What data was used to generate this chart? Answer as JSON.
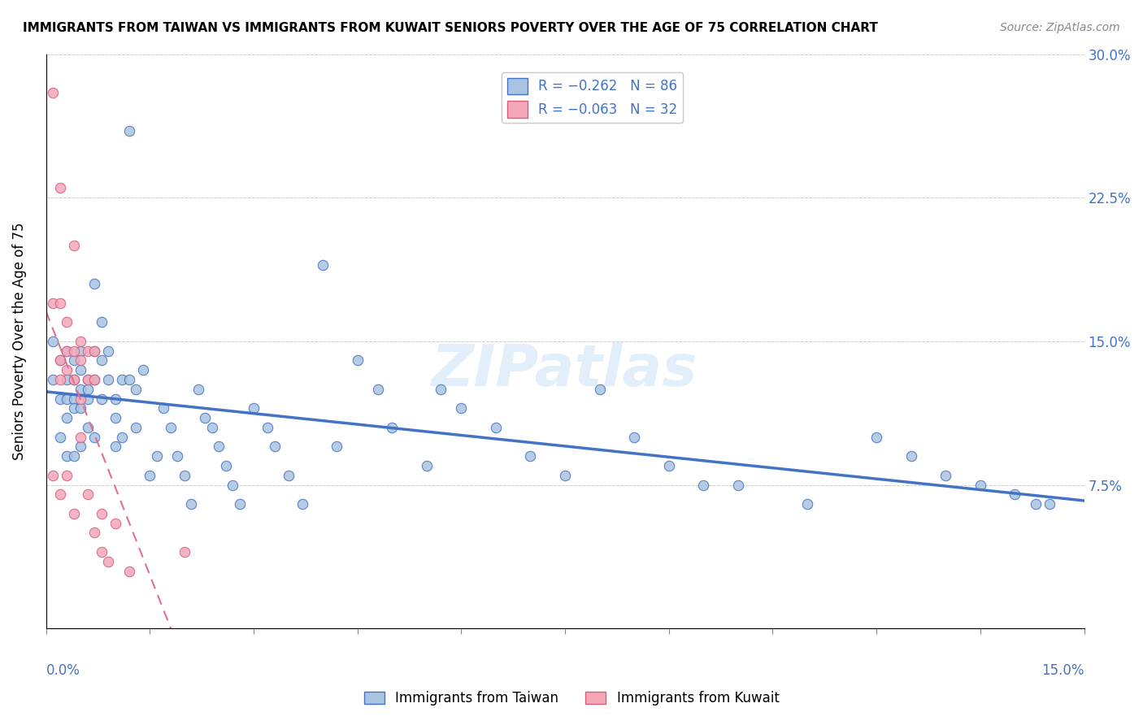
{
  "title": "IMMIGRANTS FROM TAIWAN VS IMMIGRANTS FROM KUWAIT SENIORS POVERTY OVER THE AGE OF 75 CORRELATION CHART",
  "source": "Source: ZipAtlas.com",
  "ylabel": "Seniors Poverty Over the Age of 75",
  "yticks": [
    0.0,
    0.075,
    0.15,
    0.225,
    0.3
  ],
  "ytick_labels": [
    "",
    "7.5%",
    "15.0%",
    "22.5%",
    "30.0%"
  ],
  "xlim": [
    0.0,
    0.15
  ],
  "ylim": [
    0.0,
    0.3
  ],
  "taiwan_color": "#a8c4e0",
  "taiwan_line_color": "#4472c4",
  "kuwait_color": "#f4a7b9",
  "kuwait_line_color": "#e07090",
  "taiwan_scatter_x": [
    0.001,
    0.001,
    0.002,
    0.002,
    0.002,
    0.003,
    0.003,
    0.003,
    0.003,
    0.003,
    0.004,
    0.004,
    0.004,
    0.004,
    0.004,
    0.005,
    0.005,
    0.005,
    0.005,
    0.005,
    0.006,
    0.006,
    0.006,
    0.006,
    0.007,
    0.007,
    0.007,
    0.007,
    0.008,
    0.008,
    0.008,
    0.009,
    0.009,
    0.01,
    0.01,
    0.01,
    0.011,
    0.011,
    0.012,
    0.012,
    0.013,
    0.013,
    0.014,
    0.015,
    0.016,
    0.017,
    0.018,
    0.019,
    0.02,
    0.021,
    0.022,
    0.023,
    0.024,
    0.025,
    0.026,
    0.027,
    0.028,
    0.03,
    0.032,
    0.033,
    0.035,
    0.037,
    0.04,
    0.042,
    0.045,
    0.048,
    0.05,
    0.055,
    0.057,
    0.06,
    0.065,
    0.07,
    0.075,
    0.08,
    0.085,
    0.09,
    0.095,
    0.1,
    0.11,
    0.12,
    0.125,
    0.13,
    0.135,
    0.14,
    0.143,
    0.145
  ],
  "taiwan_scatter_y": [
    0.15,
    0.13,
    0.14,
    0.12,
    0.1,
    0.145,
    0.13,
    0.12,
    0.11,
    0.09,
    0.14,
    0.13,
    0.12,
    0.115,
    0.09,
    0.145,
    0.135,
    0.125,
    0.115,
    0.095,
    0.13,
    0.125,
    0.12,
    0.105,
    0.18,
    0.145,
    0.13,
    0.1,
    0.16,
    0.14,
    0.12,
    0.145,
    0.13,
    0.12,
    0.11,
    0.095,
    0.13,
    0.1,
    0.26,
    0.13,
    0.125,
    0.105,
    0.135,
    0.08,
    0.09,
    0.115,
    0.105,
    0.09,
    0.08,
    0.065,
    0.125,
    0.11,
    0.105,
    0.095,
    0.085,
    0.075,
    0.065,
    0.115,
    0.105,
    0.095,
    0.08,
    0.065,
    0.19,
    0.095,
    0.14,
    0.125,
    0.105,
    0.085,
    0.125,
    0.115,
    0.105,
    0.09,
    0.08,
    0.125,
    0.1,
    0.085,
    0.075,
    0.075,
    0.065,
    0.1,
    0.09,
    0.08,
    0.075,
    0.07,
    0.065,
    0.065
  ],
  "kuwait_scatter_x": [
    0.001,
    0.001,
    0.001,
    0.002,
    0.002,
    0.002,
    0.002,
    0.002,
    0.003,
    0.003,
    0.003,
    0.003,
    0.004,
    0.004,
    0.004,
    0.004,
    0.005,
    0.005,
    0.005,
    0.005,
    0.006,
    0.006,
    0.006,
    0.007,
    0.007,
    0.007,
    0.008,
    0.008,
    0.009,
    0.01,
    0.012,
    0.02
  ],
  "kuwait_scatter_y": [
    0.28,
    0.17,
    0.08,
    0.23,
    0.17,
    0.14,
    0.13,
    0.07,
    0.16,
    0.145,
    0.135,
    0.08,
    0.2,
    0.145,
    0.13,
    0.06,
    0.15,
    0.14,
    0.12,
    0.1,
    0.145,
    0.13,
    0.07,
    0.145,
    0.13,
    0.05,
    0.06,
    0.04,
    0.035,
    0.055,
    0.03,
    0.04
  ],
  "watermark": "ZIPatlas",
  "bottom_legend_taiwan": "Immigrants from Taiwan",
  "bottom_legend_kuwait": "Immigrants from Kuwait"
}
